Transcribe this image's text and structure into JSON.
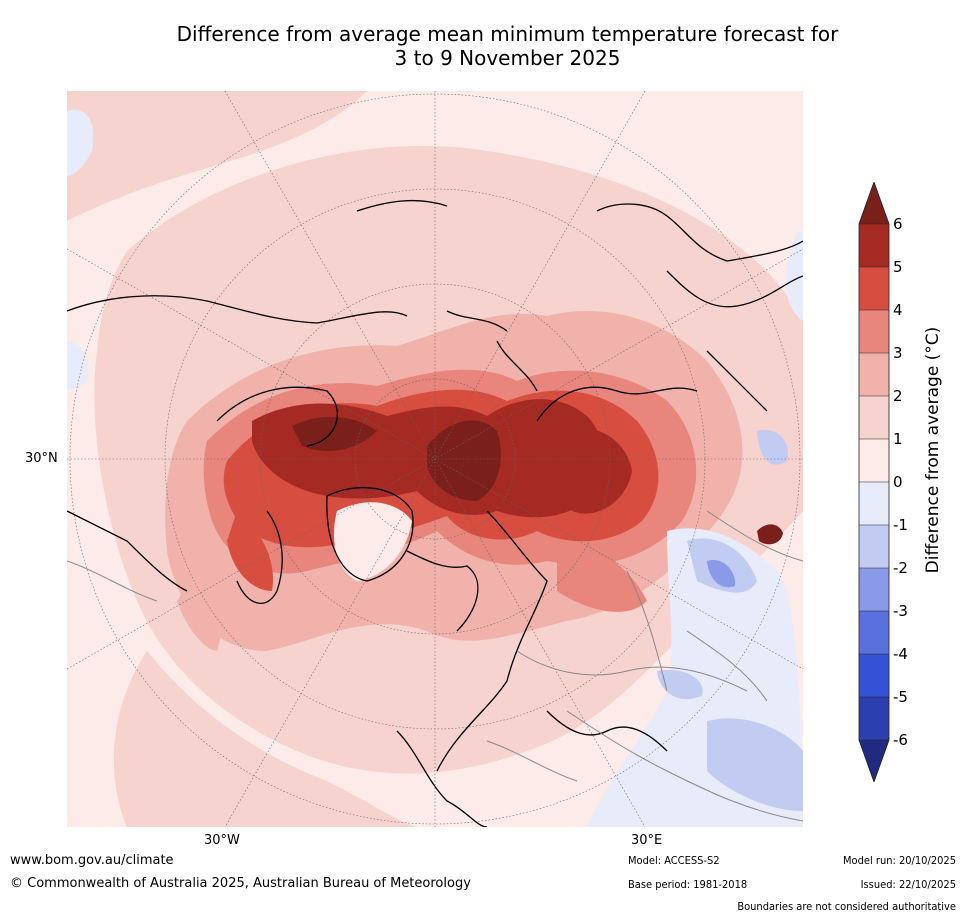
{
  "title": {
    "line1": "Difference from average mean minimum temperature forecast for",
    "line2": "3 to 9 November 2025"
  },
  "map": {
    "lat_label": "30°N",
    "lon_labels": [
      "30°W",
      "30°E"
    ]
  },
  "colorbar": {
    "label": "Difference from average (°C)",
    "ticks": [
      "6",
      "5",
      "4",
      "3",
      "2",
      "1",
      "0",
      "-1",
      "-2",
      "-3",
      "-4",
      "-5",
      "-6"
    ],
    "colors": {
      "over": "#7a1f1a",
      "5_6": "#a52a24",
      "4_5": "#d74e40",
      "3_4": "#e8857c",
      "2_3": "#f0b2aa",
      "1_2": "#f6d3cf",
      "0_1": "#fcebe8",
      "m1_0": "#e8ecfa",
      "m2_m1": "#c2cbf2",
      "m3_m2": "#8a9ae8",
      "m4_m3": "#5a70dc",
      "m5_m4": "#3552d6",
      "m6_m5": "#2b3fae",
      "under": "#1f2a80"
    }
  },
  "footer": {
    "website": "www.bom.gov.au/climate",
    "copyright": "© Commonwealth of Australia 2025, Australian Bureau of Meteorology",
    "model": "Model: ACCESS-S2",
    "base_period": "Base period: 1981-2018",
    "model_run": "Model run: 20/10/2025",
    "issued": "Issued: 22/10/2025",
    "disclaimer": "Boundaries are not considered authoritative"
  }
}
